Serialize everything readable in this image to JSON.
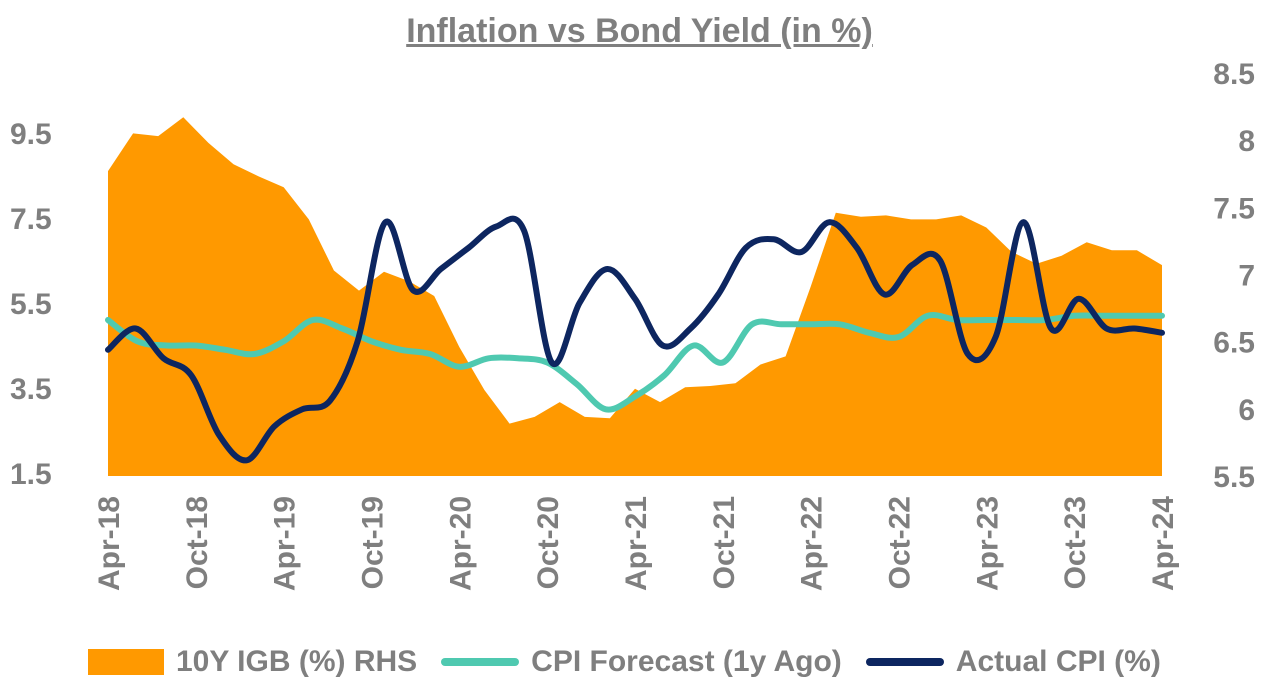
{
  "chart_data": {
    "type": "area",
    "title": "Inflation vs Bond Yield (in %)",
    "y_left_ticks": [
      "9.5",
      "7.5",
      "5.5",
      "3.5",
      "1.5"
    ],
    "y_left_range": [
      1.5,
      9.5
    ],
    "y_right_ticks": [
      "8.5",
      "8",
      "7.5",
      "7",
      "6.5",
      "6",
      "5.5"
    ],
    "y_right_range": [
      5.5,
      8.5
    ],
    "x_tick_labels": [
      "Apr-18",
      "Oct-18",
      "Apr-19",
      "Oct-19",
      "Apr-20",
      "Oct-20",
      "Apr-21",
      "Oct-21",
      "Apr-22",
      "Oct-22",
      "Apr-23",
      "Oct-23",
      "Apr-24"
    ],
    "x_start": "Apr-18",
    "x_end": "Apr-24",
    "grid": false,
    "legend_position": "bottom",
    "series": [
      {
        "name": "10Y IGB (%) RHS",
        "type": "area",
        "axis": "right",
        "color": "#ff9900",
        "values": [
          7.77,
          8.05,
          8.03,
          8.17,
          7.98,
          7.82,
          7.73,
          7.65,
          7.41,
          7.03,
          6.88,
          7.02,
          6.95,
          6.84,
          6.46,
          6.14,
          5.89,
          5.94,
          6.05,
          5.94,
          5.93,
          6.15,
          6.05,
          6.16,
          6.17,
          6.19,
          6.33,
          6.39,
          6.91,
          7.46,
          7.43,
          7.44,
          7.41,
          7.41,
          7.44,
          7.35,
          7.17,
          7.08,
          7.14,
          7.24,
          7.18,
          7.18,
          7.07
        ]
      },
      {
        "name": "CPI Forecast (1y Ago)",
        "type": "line",
        "axis": "left",
        "color": "#4fc9b0",
        "values": [
          5.1,
          4.6,
          4.5,
          4.5,
          4.4,
          4.3,
          4.6,
          5.1,
          4.9,
          4.6,
          4.4,
          4.3,
          4.0,
          4.2,
          4.2,
          4.1,
          3.6,
          3.0,
          3.3,
          3.8,
          4.5,
          4.1,
          5.0,
          5.0,
          5.0,
          5.0,
          4.8,
          4.7,
          5.2,
          5.1,
          5.1,
          5.1,
          5.1,
          5.2,
          5.2,
          5.2,
          5.2
        ]
      },
      {
        "name": "Actual CPI (%)",
        "type": "line",
        "axis": "left",
        "color": "#0d2660",
        "values": [
          4.4,
          4.9,
          4.2,
          3.8,
          2.4,
          1.8,
          2.6,
          3.0,
          3.2,
          4.6,
          7.4,
          5.8,
          6.3,
          6.8,
          7.3,
          7.2,
          4.1,
          5.5,
          6.3,
          5.6,
          4.5,
          4.9,
          5.7,
          6.8,
          7.0,
          6.7,
          7.4,
          6.8,
          5.7,
          6.4,
          6.5,
          4.3,
          4.7,
          7.4,
          4.9,
          5.6,
          4.9,
          4.9,
          4.8
        ]
      }
    ]
  }
}
